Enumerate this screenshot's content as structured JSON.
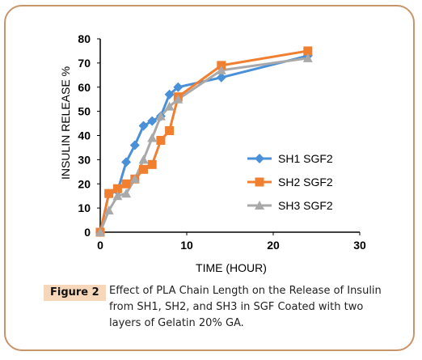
{
  "figure": {
    "label": "Figure 2",
    "caption": "Effect of PLA Chain Length on the Release of Insulin from SH1, SH2, and SH3 in SGF Coated with two layers of Gelatin 20% GA."
  },
  "chart_data": {
    "type": "line",
    "xlabel": "TIME (HOUR)",
    "ylabel": "INSULIN RELEASE %",
    "xlim": [
      0,
      30
    ],
    "ylim": [
      0,
      80
    ],
    "xticks": [
      0,
      10,
      20,
      30
    ],
    "yticks": [
      0,
      10,
      20,
      30,
      40,
      50,
      60,
      70,
      80
    ],
    "grid": false,
    "legend_position": "right",
    "series": [
      {
        "name": "SH1 SGF2",
        "color": "#4a90d9",
        "marker": "diamond",
        "x": [
          0,
          1,
          2,
          3,
          4,
          5,
          6,
          7,
          8,
          9,
          14,
          24
        ],
        "y": [
          0,
          16,
          17,
          29,
          36,
          44,
          46,
          48,
          57,
          60,
          64,
          73
        ]
      },
      {
        "name": "SH2 SGF2",
        "color": "#f07f30",
        "marker": "square",
        "x": [
          0,
          1,
          2,
          3,
          4,
          5,
          6,
          7,
          8,
          9,
          14,
          24
        ],
        "y": [
          0,
          16,
          18,
          20,
          22,
          26,
          28,
          38,
          42,
          56,
          69,
          75
        ]
      },
      {
        "name": "SH3 SGF2",
        "color": "#a9a9a9",
        "marker": "triangle",
        "x": [
          0,
          1,
          2,
          3,
          4,
          5,
          6,
          7,
          8,
          9,
          14,
          24
        ],
        "y": [
          0,
          9,
          15,
          16,
          22,
          30,
          39,
          48,
          52,
          55,
          67,
          72
        ]
      }
    ]
  }
}
